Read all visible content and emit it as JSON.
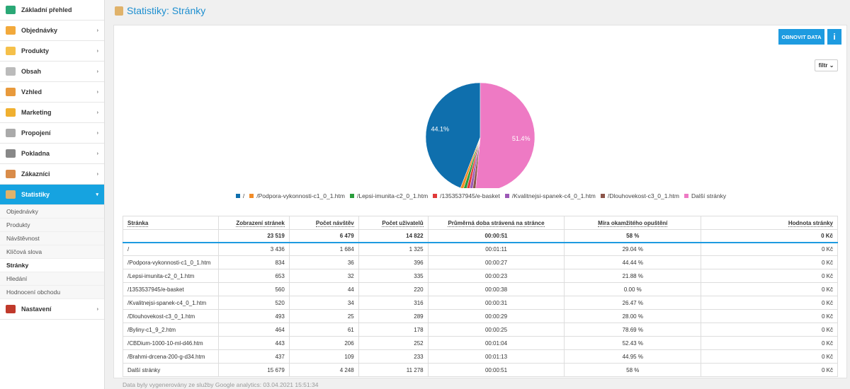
{
  "sidebar": {
    "items": [
      "Základní přehled",
      "Objednávky",
      "Produkty",
      "Obsah",
      "Vzhled",
      "Marketing",
      "Propojení",
      "Pokladna",
      "Zákazníci",
      "Statistiky"
    ],
    "submenu": [
      "Objednávky",
      "Produkty",
      "Návštěvnost",
      "Klíčová slova",
      "Stránky",
      "Hledání",
      "Hodnocení obchodu"
    ],
    "after": [
      "Nastavení"
    ]
  },
  "header": {
    "title": "Statistiky: Stránky"
  },
  "toolbar": {
    "refresh": "OBNOVIT DATA",
    "info": "i",
    "filter": "filtr"
  },
  "chart_data": {
    "type": "pie",
    "categories": [
      "/",
      "/Podpora-vykonnosti-c1_0_1.htm",
      "/Lepsi-imunita-c2_0_1.htm",
      "/1353537945/e-basket",
      "/Kvalitnejsi-spanek-c4_0_1.htm",
      "/Dlouhovekost-c3_0_1.htm",
      "Další stránky"
    ],
    "values": [
      44.1,
      0.9,
      0.9,
      0.9,
      0.9,
      0.9,
      51.4
    ],
    "value_labels": [
      "44.1%",
      null,
      null,
      null,
      null,
      null,
      "51.4%"
    ],
    "colors": [
      "#0f6fad",
      "#f28c28",
      "#2a9d3c",
      "#e03a3a",
      "#9b59b6",
      "#8c564b",
      "#ee7ac4"
    ]
  },
  "table": {
    "headers": [
      "Stránka",
      "Zobrazení stránek",
      "Počet návštěv",
      "Počet uživatelů",
      "Průměrná doba strávená na stránce",
      "Míra okamžitého opuštění",
      "Hodnota stránky"
    ],
    "totals": [
      "",
      "23 519",
      "6 479",
      "14 822",
      "00:00:51",
      "58 %",
      "0 Kč"
    ],
    "rows": [
      [
        "/",
        "3 436",
        "1 684",
        "1 325",
        "00:01:11",
        "29.04 %",
        "0 Kč"
      ],
      [
        "/Podpora-vykonnosti-c1_0_1.htm",
        "834",
        "36",
        "396",
        "00:00:27",
        "44.44 %",
        "0 Kč"
      ],
      [
        "/Lepsi-imunita-c2_0_1.htm",
        "653",
        "32",
        "335",
        "00:00:23",
        "21.88 %",
        "0 Kč"
      ],
      [
        "/1353537945/e-basket",
        "560",
        "44",
        "220",
        "00:00:38",
        "0.00 %",
        "0 Kč"
      ],
      [
        "/Kvalitnejsi-spanek-c4_0_1.htm",
        "520",
        "34",
        "316",
        "00:00:31",
        "26.47 %",
        "0 Kč"
      ],
      [
        "/Dlouhovekost-c3_0_1.htm",
        "493",
        "25",
        "289",
        "00:00:29",
        "28.00 %",
        "0 Kč"
      ],
      [
        "/Byliny-c1_9_2.htm",
        "464",
        "61",
        "178",
        "00:00:25",
        "78.69 %",
        "0 Kč"
      ],
      [
        "/CBDium-1000-10-ml-d46.htm",
        "443",
        "206",
        "252",
        "00:01:04",
        "52.43 %",
        "0 Kč"
      ],
      [
        "/Brahmi-drcena-200-g-d34.htm",
        "437",
        "109",
        "233",
        "00:01:13",
        "44.95 %",
        "0 Kč"
      ],
      [
        "Další stránky",
        "15 679",
        "4 248",
        "11 278",
        "00:00:51",
        "58 %",
        "0 Kč"
      ]
    ]
  },
  "footer": {
    "note": "Data byly vygenerovány ze služby Google analytics: 03.04.2021 15:51:34"
  }
}
